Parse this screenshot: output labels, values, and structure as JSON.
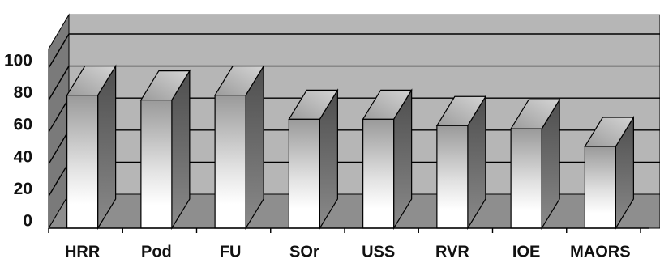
{
  "chart_data": {
    "type": "bar",
    "categories": [
      "HRR",
      "Pod",
      "FU",
      "SOr",
      "USS",
      "RVR",
      "IOE",
      "MAORS"
    ],
    "values": [
      83,
      80,
      83,
      68,
      68,
      64,
      62,
      51
    ],
    "ylim": [
      0,
      100
    ],
    "yticks": [
      0,
      20,
      40,
      60,
      80,
      100
    ],
    "title": "",
    "xlabel": "",
    "ylabel": "",
    "grid": true,
    "legend": "none",
    "style": "3d-columns"
  },
  "colors": {
    "back_wall": "#b6b6b6",
    "floor": "#8e8e8e",
    "side_wall": "#7a7a7a",
    "gridline": "#000000",
    "bar_front_top": "#9a9a9a",
    "bar_front_bottom": "#ffffff",
    "bar_side": "#6a6a6a",
    "bar_top": "#bdbdbd"
  }
}
